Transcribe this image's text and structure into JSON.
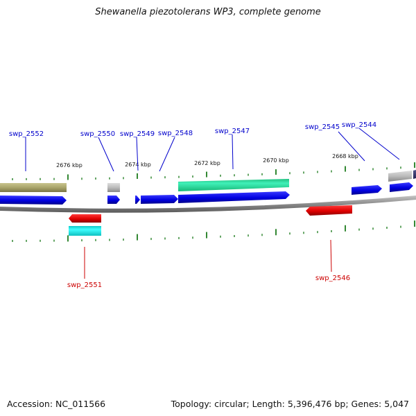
{
  "title": "Shewanella piezotolerans WP3, complete genome",
  "footer": {
    "accession_label": "Accession: NC_011566",
    "summary": "Topology: circular; Length: 5,396,476 bp; Genes: 5,047"
  },
  "colors": {
    "forward_label": "#0000cc",
    "reverse_label": "#cc0000",
    "tick": "#338833",
    "backbone": "#888888"
  },
  "scale_ticks": [
    {
      "label": "2676 kbp"
    },
    {
      "label": "2674 kbp"
    },
    {
      "label": "2672 kbp"
    },
    {
      "label": "2670 kbp"
    },
    {
      "label": "2668 kbp"
    }
  ],
  "genes": [
    {
      "name": "swp_2552",
      "strand": "forward"
    },
    {
      "name": "swp_2550",
      "strand": "forward"
    },
    {
      "name": "swp_2549",
      "strand": "forward"
    },
    {
      "name": "swp_2548",
      "strand": "forward"
    },
    {
      "name": "swp_2547",
      "strand": "forward"
    },
    {
      "name": "swp_2545",
      "strand": "forward"
    },
    {
      "name": "swp_2544",
      "strand": "forward"
    },
    {
      "name": "swp_2551",
      "strand": "reverse"
    },
    {
      "name": "swp_2546",
      "strand": "reverse"
    }
  ]
}
